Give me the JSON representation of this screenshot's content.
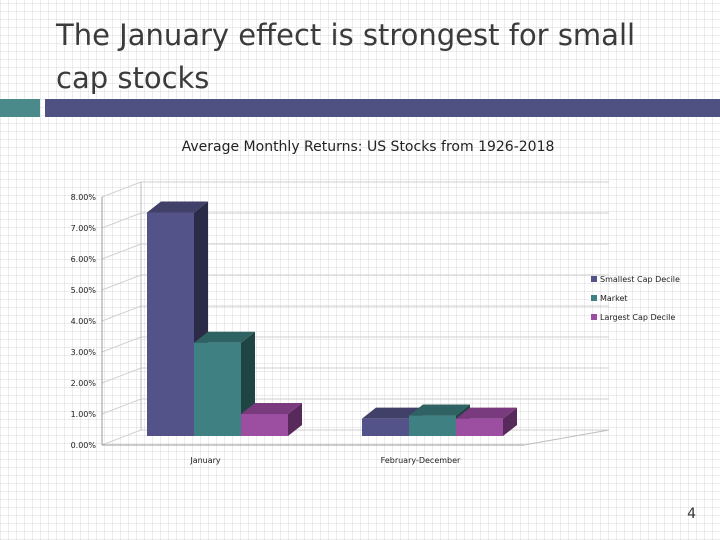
{
  "slide": {
    "title": "The January effect is strongest for small cap stocks",
    "number": "4"
  },
  "colors": {
    "accent_teal": "#4a8a8a",
    "accent_navy": "#4e5182"
  },
  "chart_data": {
    "type": "bar",
    "title": "Average Monthly Returns: US Stocks from 1926-2018",
    "categories": [
      "January",
      "February-December"
    ],
    "series": [
      {
        "name": "Smallest Cap Decile",
        "values": [
          7.5,
          0.85
        ],
        "color": "#535389",
        "side": "#2b2b48",
        "top": "#404068"
      },
      {
        "name": "Market",
        "values": [
          3.3,
          0.95
        ],
        "color": "#3f8082",
        "side": "#1f4444",
        "top": "#2f6263"
      },
      {
        "name": "Largest Cap Decile",
        "values": [
          1.0,
          0.85
        ],
        "color": "#9c4ea1",
        "side": "#582a5b",
        "top": "#7a3a7e"
      }
    ],
    "ylim": [
      0,
      8
    ],
    "yticks": [
      "0.00%",
      "1.00%",
      "2.00%",
      "3.00%",
      "4.00%",
      "5.00%",
      "6.00%",
      "7.00%",
      "8.00%"
    ],
    "ytick_values": [
      0,
      1,
      2,
      3,
      4,
      5,
      6,
      7,
      8
    ],
    "grid": true,
    "legend": "right"
  }
}
